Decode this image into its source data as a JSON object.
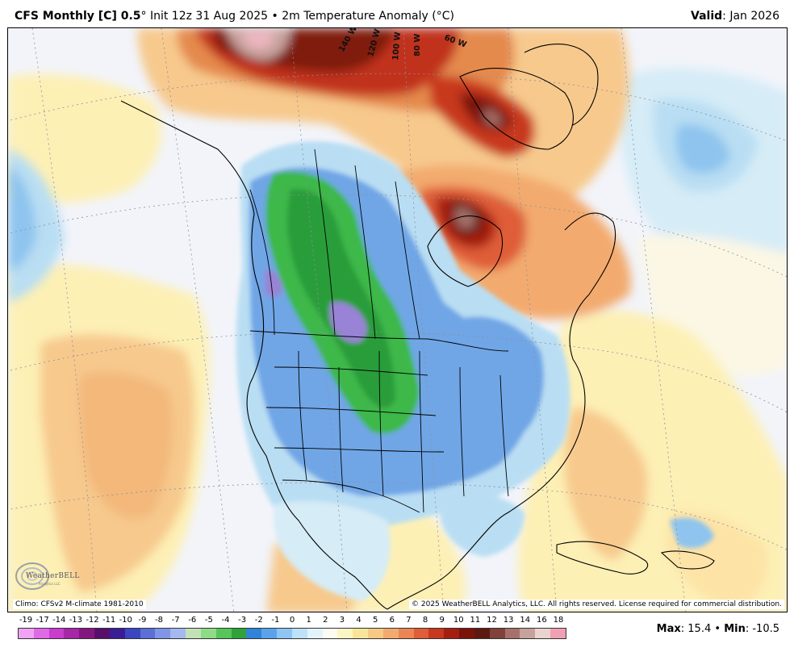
{
  "header": {
    "model": "CFS Monthly [C] 0.5",
    "degree_symbol": "°",
    "init_text": "Init 12z 31 Aug 2025",
    "bullet": "•",
    "field": "2m Temperature Anomaly (°C)",
    "valid_label": "Valid",
    "valid_value": ": Jan 2026"
  },
  "map": {
    "meridian_labels": [
      "140 W",
      "120 W",
      "100 W",
      "80 W",
      "60 W"
    ],
    "climo_text": "Climo: CFSv2 M-climate 1981-2010",
    "copyright_text": "© 2025 WeatherBELL Analytics, LLC. All rights reserved. License required for commercial distribution.",
    "logo_text": "WeatherBELL",
    "logo_subtext": "Analytics LLC",
    "colors": {
      "ocean": "#f2f4fa",
      "warm_yellow": "#fdf0b5",
      "warm_orange": "#f7c98d",
      "warm_dark": "#e58a4e",
      "hot_red": "#c1331a",
      "very_hot": "#801a0a",
      "cool_light": "#b9def3",
      "cool_blue": "#6fa6e6",
      "cool_green": "#3eb84a",
      "cool_purple": "#9883d6"
    }
  },
  "legend": {
    "labels": [
      "-19",
      "-17",
      "-14",
      "-13",
      "-12",
      "-11",
      "-10",
      "-9",
      "-8",
      "-7",
      "-6",
      "-5",
      "-4",
      "-3",
      "-2",
      "-1",
      "0",
      "1",
      "2",
      "3",
      "4",
      "5",
      "6",
      "7",
      "8",
      "9",
      "10",
      "11",
      "12",
      "13",
      "14",
      "16",
      "18"
    ],
    "colors": [
      "#f2a2f5",
      "#e069e6",
      "#c93ccd",
      "#a726a7",
      "#84177f",
      "#5a0e6b",
      "#3a1c95",
      "#3c46c1",
      "#5b6fd7",
      "#8095e6",
      "#a5b8f0",
      "#c3e1b8",
      "#8edc86",
      "#56c55a",
      "#2fa23c",
      "#2f84d8",
      "#5aa3ec",
      "#8dc5f3",
      "#bde1f7",
      "#e3f3fb",
      "#fbfbf3",
      "#fcf6c5",
      "#f9e59a",
      "#f7c985",
      "#f3aa6e",
      "#ec8553",
      "#df5d39",
      "#c8371f",
      "#a51f11",
      "#7a1409",
      "#5c1a10",
      "#80423a",
      "#a6716a",
      "#c7a29c",
      "#e9d3cf",
      "#f0a0b2"
    ]
  },
  "maxmin": {
    "max_label": "Max",
    "max_value": ": 15.4",
    "bullet": "•",
    "min_label": "Min",
    "min_value": ": -10.5"
  }
}
